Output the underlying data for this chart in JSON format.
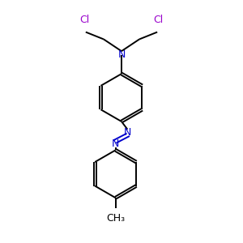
{
  "background_color": "#ffffff",
  "bond_color": "#000000",
  "N_color": "#0000cc",
  "Cl_color": "#9900cc",
  "text_color": "#000000",
  "figsize": [
    3.0,
    3.0
  ],
  "dpi": 100,
  "xlim": [
    0,
    10
  ],
  "ylim": [
    0,
    10
  ]
}
